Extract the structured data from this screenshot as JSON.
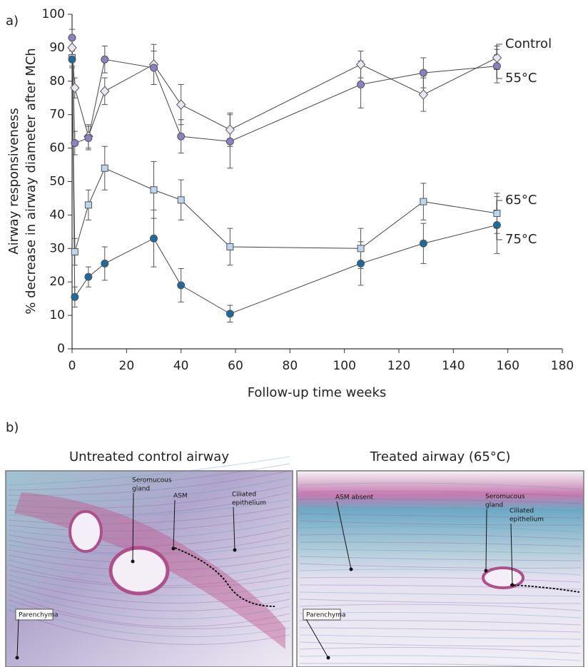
{
  "chart_data": {
    "type": "line",
    "panel_label": "a)",
    "ylabel": [
      "Airway responsiveness",
      "% decrease in airway diameter after MCh"
    ],
    "xlabel": "Follow-up time weeks",
    "x": [
      0,
      1,
      6,
      12,
      30,
      40,
      58,
      106,
      129,
      156
    ],
    "xlim": [
      0,
      180
    ],
    "xticks": [
      0,
      20,
      40,
      60,
      80,
      100,
      120,
      140,
      160,
      180
    ],
    "ylim": [
      0,
      100
    ],
    "yticks": [
      0,
      10,
      20,
      30,
      40,
      50,
      60,
      70,
      80,
      90,
      100
    ],
    "series": [
      {
        "name": "Control",
        "color": "#ece6f3",
        "marker": "diamond",
        "values": [
          90,
          78,
          63.5,
          77,
          85,
          73,
          65.5,
          85,
          76,
          87
        ],
        "errors": [
          3,
          3,
          3.5,
          4,
          6,
          6,
          5,
          4,
          5,
          3.5
        ]
      },
      {
        "name": "55°C",
        "color": "#8a80c2",
        "marker": "circle",
        "values": [
          93,
          61.5,
          63,
          86.5,
          84,
          63.5,
          62,
          79,
          82.5,
          84.5
        ],
        "errors": [
          2.5,
          3.5,
          3.5,
          4,
          5,
          5,
          8,
          7,
          4.5,
          5
        ]
      },
      {
        "name": "65°C",
        "color": "#bcd6ef",
        "marker": "square",
        "values": [
          87,
          29,
          43,
          54,
          47.5,
          44.5,
          30.5,
          30,
          44,
          40.5
        ],
        "errors": [
          2.5,
          4,
          4.5,
          6.5,
          8.5,
          6,
          5.5,
          6,
          5.5,
          6
        ]
      },
      {
        "name": "75°C",
        "color": "#1d6b9e",
        "marker": "circle",
        "values": [
          86.5,
          15.5,
          21.5,
          25.5,
          33,
          19,
          10.5,
          25.5,
          31.5,
          37
        ],
        "errors": [
          2.5,
          3,
          3,
          5,
          8.5,
          5,
          2.5,
          6.5,
          6,
          8.5
        ]
      }
    ]
  },
  "figure_b": {
    "panel_label": "b)",
    "panels": [
      {
        "title": "Untreated control airway",
        "annotations": [
          {
            "lines": [
              "Seromucous",
              "gland"
            ]
          },
          {
            "lines": [
              "ASM"
            ]
          },
          {
            "lines": [
              "Ciliated",
              "epithelium"
            ]
          },
          {
            "lines": [
              "Parenchyma"
            ]
          }
        ]
      },
      {
        "title": "Treated airway (65°C)",
        "annotations": [
          {
            "lines": [
              "ASM absent"
            ]
          },
          {
            "lines": [
              "Seromucous",
              "gland"
            ]
          },
          {
            "lines": [
              "Ciliated",
              "epithelium"
            ]
          },
          {
            "lines": [
              "Parenchyma"
            ]
          }
        ]
      }
    ]
  }
}
